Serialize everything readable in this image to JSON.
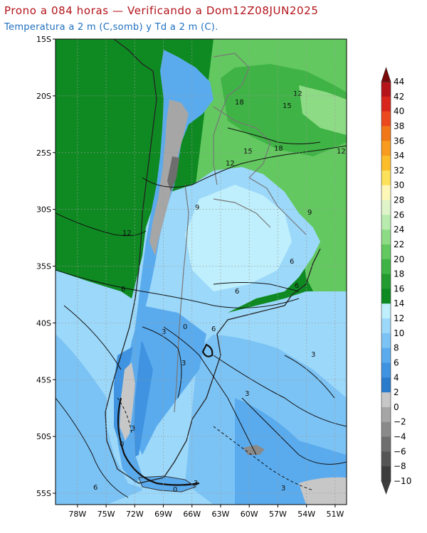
{
  "header": {
    "title": "Prono a 084 horas — Verificando a Dom12Z08JUN2025",
    "subtitle": "Temperatura a 2 m (C,somb) y Td a 2 m (C)."
  },
  "map": {
    "lat_ticks": [
      "15S",
      "20S",
      "25S",
      "30S",
      "35S",
      "40S",
      "45S",
      "50S",
      "55S"
    ],
    "lon_ticks": [
      "78W",
      "75W",
      "72W",
      "69W",
      "66W",
      "63W",
      "60W",
      "57W",
      "54W",
      "51W"
    ],
    "contour_labels": [
      "12",
      "15",
      "18",
      "12",
      "18",
      "15",
      "12",
      "9",
      "9",
      "12",
      "6",
      "6",
      "6",
      "6",
      "6",
      "3",
      "0",
      "3",
      "3",
      "3",
      "3",
      "3",
      "0",
      "6",
      "3",
      "0"
    ]
  },
  "colorbar": {
    "levels": [
      "44",
      "42",
      "40",
      "38",
      "36",
      "34",
      "32",
      "30",
      "28",
      "26",
      "24",
      "22",
      "20",
      "18",
      "16",
      "14",
      "12",
      "10",
      "8",
      "6",
      "4",
      "2",
      "0",
      "−2",
      "−4",
      "−6",
      "−8",
      "−10"
    ],
    "colors": [
      "#7a0a0a",
      "#b4141a",
      "#d8261c",
      "#ea4a1e",
      "#f07818",
      "#f79c1e",
      "#fbbd2a",
      "#fde15a",
      "#fdf7b8",
      "#dff5c9",
      "#b8ebad",
      "#8edb86",
      "#62c85f",
      "#3fb345",
      "#249b30",
      "#0f8a22",
      "#bfeffc",
      "#9cd8fa",
      "#7cc3f5",
      "#5aabee",
      "#3f93e0",
      "#2a7bcc",
      "#c7c7c7",
      "#a6a6a6",
      "#8a8a8a",
      "#6e6e6e",
      "#555555",
      "#3d3d3d"
    ]
  },
  "palette": {
    "ocean_warm": "#0f8a22",
    "ocean_cool": "#9cd8fa",
    "ocean_cold": "#5aabee",
    "land_cold": "#7cc3f5",
    "andes": "#a6a6a6",
    "border": "#777777"
  }
}
